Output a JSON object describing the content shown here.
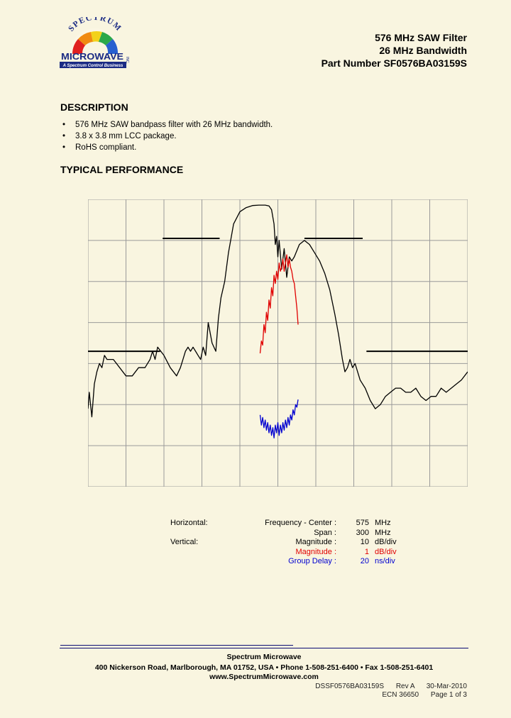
{
  "logo": {
    "arc_text": "SPECTRUM",
    "main_text": "MICROWAVE",
    "inc_text": "INC.",
    "tagline": "A Spectrum Control Business",
    "colors": {
      "navy": "#1b2b84",
      "red": "#e02020",
      "orange": "#f08a10",
      "yellow": "#f2d21a",
      "green": "#2aa84a",
      "blue": "#2860d0"
    }
  },
  "header": {
    "line1": "576 MHz SAW Filter",
    "line2": "26 MHz Bandwidth",
    "line3": "Part Number SF0576BA03159S"
  },
  "description": {
    "heading": "DESCRIPTION",
    "bullets": [
      "576 MHz SAW bandpass filter with 26 MHz bandwidth.",
      "3.8 x 3.8 mm LCC package.",
      "RoHS compliant."
    ]
  },
  "performance": {
    "heading": "TYPICAL PERFORMANCE"
  },
  "chart_data": {
    "type": "line",
    "x_range": [
      425,
      725
    ],
    "x_units": "MHz",
    "x_divisions": 10,
    "y_divisions": 7,
    "grid": true,
    "series": [
      {
        "color": "#000000",
        "scale": "10 dB/div",
        "x": [
          425,
          426,
          428,
          430,
          432,
          434,
          436,
          438,
          440,
          445,
          450,
          455,
          460,
          465,
          470,
          474,
          476,
          478,
          480,
          485,
          490,
          495,
          498,
          500,
          502,
          504,
          506,
          508,
          510,
          512,
          514,
          516,
          518,
          520,
          523,
          526,
          528,
          530,
          533,
          536,
          540,
          545,
          550,
          555,
          560,
          565,
          568,
          570,
          572,
          573,
          574,
          575,
          576,
          578,
          580,
          582,
          584,
          586,
          588,
          592,
          596,
          600,
          604,
          608,
          612,
          616,
          620,
          623,
          626,
          628,
          630,
          632,
          634,
          636,
          640,
          644,
          648,
          652,
          656,
          660,
          664,
          668,
          672,
          676,
          680,
          684,
          688,
          692,
          696,
          700,
          704,
          708,
          712,
          716,
          720,
          725
        ],
        "y": [
          -46,
          -42,
          -48,
          -40,
          -37,
          -35,
          -36,
          -33,
          -34,
          -34,
          -36,
          -38,
          -38,
          -36,
          -36,
          -34,
          -32,
          -34,
          -31,
          -33,
          -36,
          -38,
          -36,
          -34,
          -32,
          -31,
          -32,
          -31,
          -32,
          -33,
          -34,
          -31,
          -33,
          -25,
          -30,
          -32,
          -24,
          -19,
          -15,
          -8,
          -1,
          2,
          3,
          3.5,
          3.6,
          3.6,
          3.4,
          2.5,
          -1,
          -6,
          -4,
          -9,
          -5,
          -12,
          -7,
          -14,
          -9,
          -10,
          -9,
          -6,
          -5,
          -6,
          -8,
          -10,
          -13,
          -17,
          -23,
          -28,
          -34,
          -37,
          -36,
          -34,
          -36,
          -35,
          -39,
          -41,
          -44,
          -46,
          -45,
          -43,
          -42,
          -41,
          -41,
          -42,
          -42,
          -41,
          -43,
          -44,
          -43,
          -43,
          -41,
          -42,
          -41,
          -40,
          -39,
          -37
        ]
      },
      {
        "color": "#e00000",
        "scale": "1 dB/div",
        "x": [
          561,
          562,
          563,
          564,
          565,
          566,
          567,
          568,
          569,
          570,
          571,
          572,
          573,
          574,
          575,
          576,
          577,
          578,
          579,
          580,
          581,
          582,
          583,
          584,
          585,
          586,
          587,
          588,
          589,
          590,
          591
        ],
        "y": [
          -2.9,
          -2.6,
          -2.7,
          -2.2,
          -2.4,
          -1.9,
          -2.1,
          -1.6,
          -1.8,
          -1.3,
          -1.5,
          -1.0,
          -1.2,
          -0.9,
          -1.1,
          -0.7,
          -0.9,
          -0.8,
          -0.6,
          -0.9,
          -0.7,
          -0.5,
          -0.8,
          -0.6,
          -0.8,
          -0.9,
          -1.1,
          -1.2,
          -1.5,
          -1.8,
          -2.2
        ]
      },
      {
        "color": "#0000d0",
        "scale": "20 ns/div",
        "x": [
          561,
          562,
          563,
          564,
          565,
          566,
          567,
          568,
          569,
          570,
          571,
          572,
          573,
          574,
          575,
          576,
          577,
          578,
          579,
          580,
          581,
          582,
          583,
          584,
          585,
          586,
          587,
          588,
          589,
          590,
          591
        ],
        "y": [
          -34,
          -38,
          -35,
          -39,
          -36,
          -40,
          -37,
          -41,
          -38,
          -42,
          -39,
          -43,
          -38,
          -41,
          -37,
          -42,
          -38,
          -41,
          -37,
          -40,
          -36,
          -39,
          -35,
          -38,
          -34,
          -36,
          -32,
          -34,
          -30,
          -31,
          -28
        ]
      }
    ],
    "spec_lines": [
      {
        "x": [
          425,
          482
        ],
        "y": -32
      },
      {
        "x": [
          484,
          529
        ],
        "y": -4.5
      },
      {
        "x": [
          596,
          642
        ],
        "y": -4.5
      },
      {
        "x": [
          645,
          725
        ],
        "y": -32
      }
    ]
  },
  "legend": {
    "rows": [
      {
        "head": "Horizontal:",
        "label": "Frequency  -  Center :",
        "value": "575",
        "unit": "MHz",
        "color": ""
      },
      {
        "head": "",
        "label": "Span :",
        "value": "300",
        "unit": "MHz",
        "color": ""
      },
      {
        "head": "Vertical:",
        "label": "Magnitude :",
        "value": "10",
        "unit": "dB/div",
        "color": ""
      },
      {
        "head": "",
        "label": "Magnitude :",
        "value": "1",
        "unit": "dB/div",
        "color": "red"
      },
      {
        "head": "",
        "label": "Group Delay :",
        "value": "20",
        "unit": "ns/div",
        "color": "blue"
      }
    ]
  },
  "footer": {
    "company": "Spectrum Microwave",
    "address": "400 Nickerson Road, Marlborough, MA 01752, USA  •  Phone 1-508-251-6400  •  Fax 1-508-251-6401",
    "website": "www.SpectrumMicrowave.com",
    "doc_number": "DSSF0576BA03159S",
    "revision": "Rev A",
    "date": "30-Mar-2010",
    "ecn": "ECN 36650",
    "page": "Page 1 of 3"
  }
}
